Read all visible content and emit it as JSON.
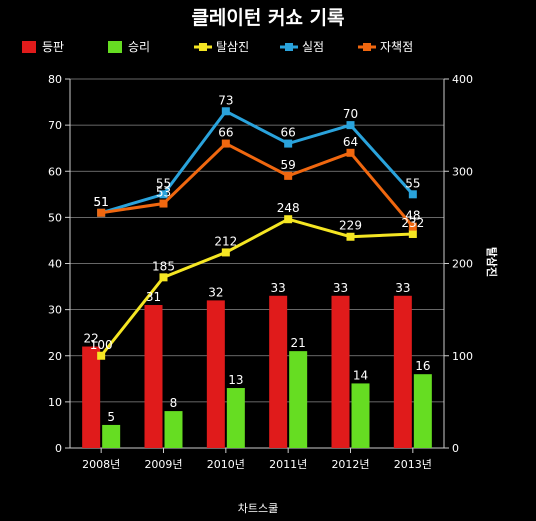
{
  "chart_data": {
    "type": "bar",
    "title": "클레이턴 커쇼 기록",
    "categories": [
      "2008년",
      "2009년",
      "2010년",
      "2011년",
      "2012년",
      "2013년"
    ],
    "y_left": {
      "min": 0,
      "max": 80,
      "ticks": [
        0,
        10,
        20,
        30,
        40,
        50,
        60,
        70,
        80
      ]
    },
    "y_right": {
      "min": 0,
      "max": 400,
      "ticks": [
        0,
        100,
        200,
        300,
        400
      ],
      "label": "탈삼진"
    },
    "bar_series": [
      {
        "name": "등판",
        "color": "#e01b1b",
        "values": [
          22,
          31,
          32,
          33,
          33,
          33
        ]
      },
      {
        "name": "승리",
        "color": "#66dd22",
        "values": [
          5,
          8,
          13,
          21,
          14,
          16
        ]
      }
    ],
    "line_series": [
      {
        "name": "탈삼진",
        "color": "#f5e623",
        "axis": "right",
        "values": [
          100,
          185,
          212,
          248,
          229,
          232
        ]
      },
      {
        "name": "실점",
        "color": "#2aa3dc",
        "axis": "left",
        "values": [
          51,
          55,
          73,
          66,
          70,
          55
        ]
      },
      {
        "name": "자책점",
        "color": "#f0670f",
        "axis": "left",
        "values": [
          51,
          53,
          66,
          59,
          64,
          48
        ]
      }
    ],
    "grid": true,
    "legend_position": "top-left",
    "footer": "차트스쿨"
  }
}
